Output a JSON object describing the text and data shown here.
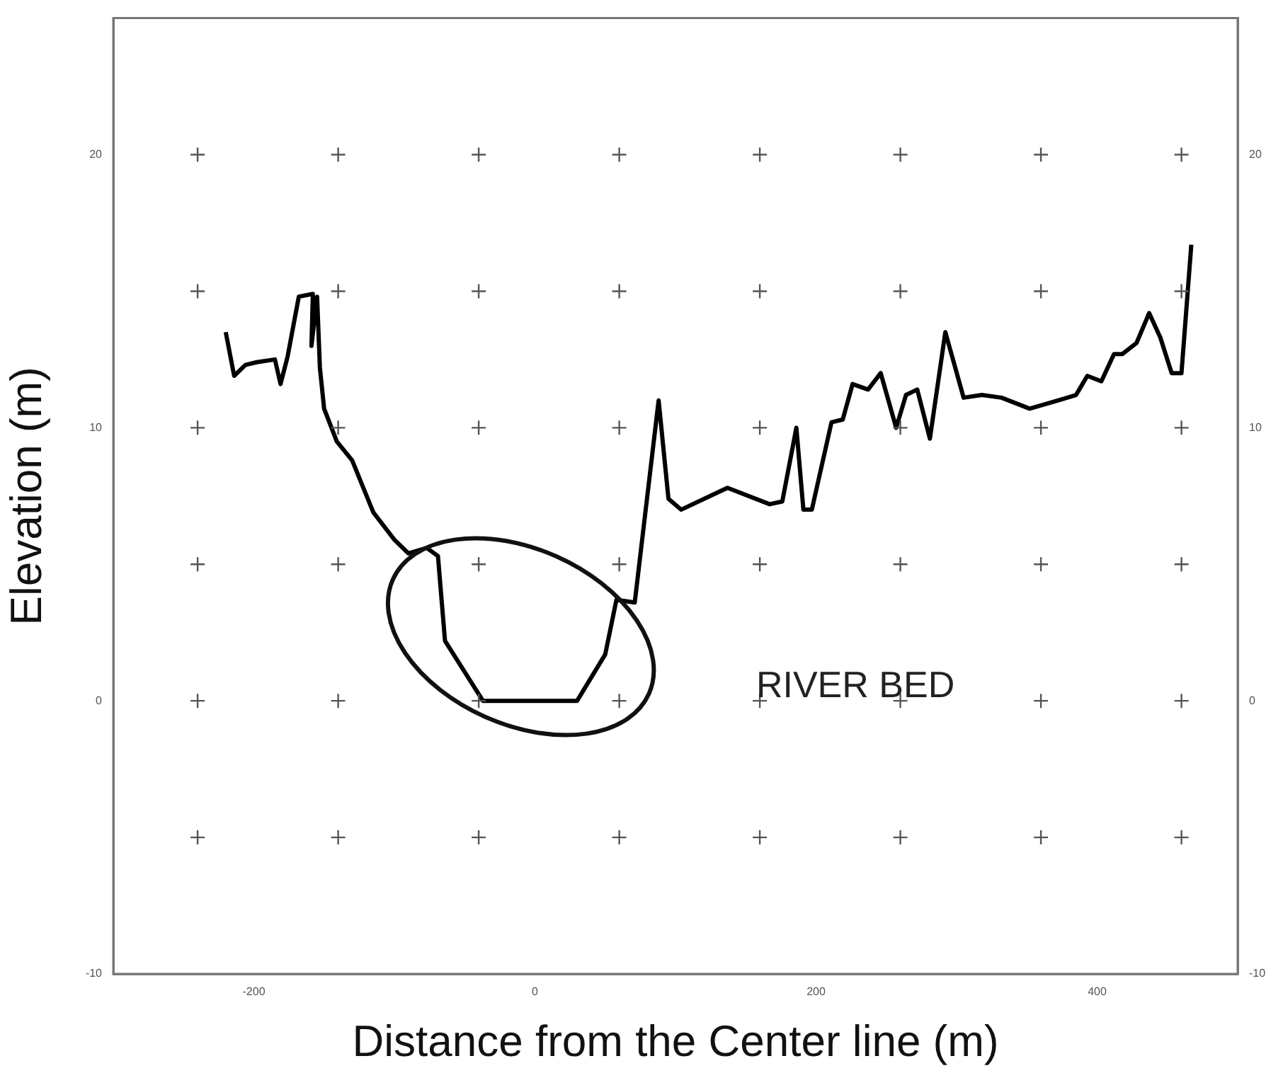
{
  "chart_data": {
    "type": "line",
    "xlabel": "Distance from the Center line (m)",
    "ylabel": "Elevation (m)",
    "xlim": [
      -300,
      500
    ],
    "xticks": [
      -200,
      0,
      200,
      400
    ],
    "ylim": [
      -10,
      25
    ],
    "yticks": [
      -10,
      0,
      10,
      20
    ],
    "y2lim": [
      -10,
      25
    ],
    "y2ticks": [
      -10,
      0,
      10,
      20
    ],
    "grid": false,
    "legend": false,
    "annotations": [
      "RIVER BED"
    ],
    "series": [
      {
        "type": "scatter",
        "marker": "cross",
        "color": "#555555",
        "x": [
          -240,
          -140,
          -40,
          60,
          160,
          260,
          360,
          460,
          -240,
          -140,
          -40,
          60,
          160,
          260,
          360,
          460,
          -240,
          -140,
          -40,
          60,
          160,
          260,
          360,
          460,
          -240,
          -140,
          -40,
          60,
          160,
          260,
          360,
          460,
          -240,
          -140,
          -40,
          60,
          160,
          260,
          360,
          460,
          -240,
          -140,
          -40,
          60,
          160,
          260,
          360,
          460
        ],
        "values": [
          20,
          20,
          20,
          20,
          20,
          20,
          20,
          20,
          15,
          15,
          15,
          15,
          15,
          15,
          15,
          15,
          10,
          10,
          10,
          10,
          10,
          10,
          10,
          10,
          5,
          5,
          5,
          5,
          5,
          5,
          5,
          5,
          0,
          0,
          0,
          0,
          0,
          0,
          0,
          0,
          -5,
          -5,
          -5,
          -5,
          -5,
          -5,
          -5,
          -5
        ]
      },
      {
        "marker": "none",
        "line_style": "solid",
        "color": "#000000",
        "x": [
          -220,
          -214,
          -206,
          -198,
          -185,
          -181,
          -176,
          -168,
          -158,
          -159,
          -155,
          -153,
          -150,
          -141,
          -130,
          -115,
          -100,
          -90,
          -77,
          -69,
          -64,
          -37,
          -32,
          30,
          50,
          58,
          71,
          88,
          95,
          104,
          137,
          167,
          176,
          186,
          191,
          197,
          211,
          219,
          226,
          237,
          246,
          257,
          264,
          272,
          281,
          292,
          305,
          318,
          332,
          352,
          372,
          385,
          393,
          403,
          412,
          418,
          428,
          437,
          445,
          453,
          460,
          467
        ],
        "values": [
          13.5,
          11.9,
          12.3,
          12.4,
          12.5,
          11.6,
          12.6,
          14.8,
          14.9,
          13,
          14.8,
          12.2,
          10.7,
          9.5,
          8.8,
          6.9,
          5.9,
          5.4,
          5.6,
          5.3,
          2.2,
          0,
          0,
          0,
          1.7,
          3.7,
          3.6,
          11,
          7.4,
          7,
          7.8,
          7.2,
          7.3,
          10,
          7,
          7,
          10.2,
          10.3,
          11.6,
          11.4,
          12,
          10,
          11.2,
          11.4,
          9.6,
          13.5,
          11.1,
          11.2,
          11.1,
          10.7,
          11,
          11.2,
          11.9,
          11.7,
          12.7,
          12.7,
          13.1,
          14.2,
          13.3,
          12,
          12,
          16.7
        ]
      }
    ]
  }
}
